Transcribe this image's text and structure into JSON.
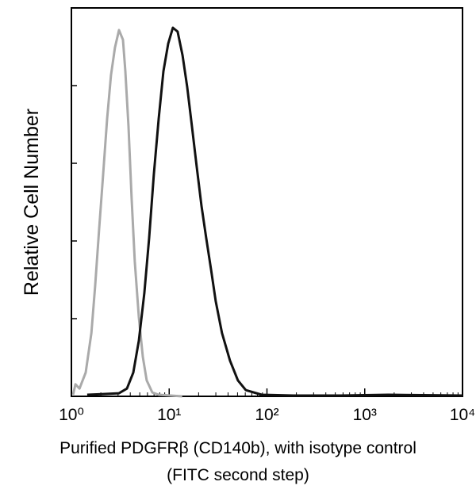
{
  "chart_data": {
    "type": "line",
    "y_label": "Relative Cell Number",
    "x_label": [
      "Purified PDGFRβ (CD140b), with isotype control",
      "(FITC second step)"
    ],
    "xlog": true,
    "xlim": [
      1,
      10000
    ],
    "xticks": [
      {
        "value": 1,
        "label": "10⁰"
      },
      {
        "value": 10,
        "label": "10¹"
      },
      {
        "value": 100,
        "label": "10²"
      },
      {
        "value": 1000,
        "label": "10³"
      },
      {
        "value": 10000,
        "label": "10⁴"
      }
    ],
    "ylim": [
      0,
      100
    ],
    "yticks": [
      0,
      20,
      40,
      60,
      80
    ],
    "series": [
      {
        "color": "#aaaaaa",
        "x": [
          1.04,
          1.1,
          1.21,
          1.4,
          1.6,
          1.75,
          1.92,
          2.11,
          2.32,
          2.54,
          2.79,
          3.07,
          3.37,
          3.56,
          3.84,
          4.13,
          4.45,
          4.89,
          5.37,
          5.89,
          6.72,
          7.8,
          13.6
        ],
        "values": [
          0.4,
          3.1,
          2.0,
          6.1,
          16.3,
          28.6,
          42.9,
          57.1,
          71.4,
          82.7,
          89.8,
          94.3,
          91.8,
          83.7,
          69.4,
          51.0,
          34.7,
          20.4,
          10.2,
          4.1,
          1.0,
          0.4,
          0
        ]
      },
      {
        "color": "#111111",
        "x": [
          1.45,
          2.11,
          3.07,
          3.7,
          4.29,
          4.89,
          5.57,
          6.24,
          6.97,
          7.8,
          8.73,
          9.77,
          10.9,
          12.2,
          13.7,
          15.3,
          17.1,
          19.1,
          21.4,
          23.9,
          26.8,
          29.9,
          34.7,
          41.9,
          50.5,
          60.8,
          88.4,
          186,
          573,
          1740,
          10000
        ],
        "values": [
          0.4,
          0.6,
          0.8,
          2.0,
          6.1,
          14.3,
          26.5,
          40.8,
          57.1,
          71.4,
          83.7,
          90.8,
          94.9,
          93.9,
          87.8,
          79.6,
          69.4,
          59.2,
          49.0,
          40.8,
          32.7,
          24.5,
          16.3,
          9.2,
          4.1,
          1.6,
          0.4,
          0.2,
          0.2,
          0.4,
          0.2
        ]
      }
    ]
  }
}
